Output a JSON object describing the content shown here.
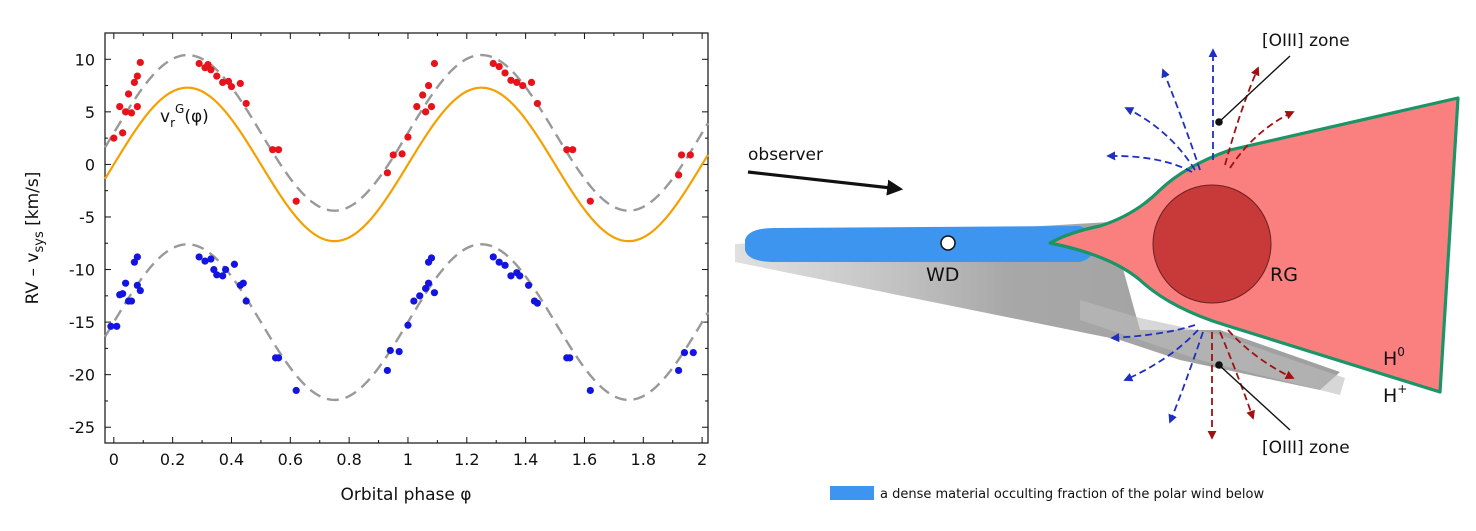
{
  "chart_data": {
    "type": "scatter",
    "xlabel": "Orbital phase φ",
    "ylabel": "RV – v_sys [km/s]",
    "xlim": [
      -0.03,
      2.02
    ],
    "ylim": [
      -26.5,
      12.5
    ],
    "x_ticks": [
      "0",
      "0.2",
      "0.4",
      "0.6",
      "0.8",
      "1",
      "1.2",
      "1.4",
      "1.6",
      "1.8",
      "2"
    ],
    "y_ticks": [
      "10",
      "5",
      "0",
      "-5",
      "-10",
      "-15",
      "-20",
      "-25"
    ],
    "curve_label": "v_r^G(φ)",
    "series": [
      {
        "color": "#e8121b",
        "points": [
          [
            0.0,
            2.5
          ],
          [
            0.02,
            5.5
          ],
          [
            0.03,
            3.0
          ],
          [
            0.04,
            5.0
          ],
          [
            0.05,
            6.7
          ],
          [
            0.06,
            4.9
          ],
          [
            0.07,
            7.8
          ],
          [
            0.08,
            8.4
          ],
          [
            0.08,
            5.5
          ],
          [
            0.09,
            9.7
          ],
          [
            0.29,
            9.6
          ],
          [
            0.31,
            9.2
          ],
          [
            0.32,
            9.5
          ],
          [
            0.33,
            9.0
          ],
          [
            0.35,
            8.4
          ],
          [
            0.37,
            7.8
          ],
          [
            0.39,
            7.9
          ],
          [
            0.4,
            7.4
          ],
          [
            0.43,
            7.7
          ],
          [
            0.45,
            5.8
          ],
          [
            0.54,
            1.4
          ],
          [
            0.56,
            1.4
          ],
          [
            0.62,
            -3.5
          ],
          [
            0.93,
            -0.8
          ],
          [
            0.95,
            0.9
          ],
          [
            0.98,
            1.0
          ],
          [
            1.0,
            2.6
          ],
          [
            1.03,
            5.5
          ],
          [
            1.05,
            6.6
          ],
          [
            1.06,
            5.0
          ],
          [
            1.07,
            7.5
          ],
          [
            1.08,
            5.5
          ],
          [
            1.09,
            9.6
          ],
          [
            1.29,
            9.6
          ],
          [
            1.31,
            9.3
          ],
          [
            1.33,
            8.7
          ],
          [
            1.35,
            8.0
          ],
          [
            1.37,
            7.8
          ],
          [
            1.39,
            7.5
          ],
          [
            1.42,
            7.8
          ],
          [
            1.44,
            5.8
          ],
          [
            1.54,
            1.4
          ],
          [
            1.56,
            1.4
          ],
          [
            1.62,
            -3.5
          ],
          [
            1.92,
            -1.0
          ],
          [
            1.93,
            0.9
          ],
          [
            1.96,
            0.9
          ]
        ]
      },
      {
        "color": "#1414e0",
        "points": [
          [
            -0.01,
            -15.4
          ],
          [
            0.01,
            -15.4
          ],
          [
            0.02,
            -12.4
          ],
          [
            0.03,
            -12.3
          ],
          [
            0.04,
            -11.3
          ],
          [
            0.05,
            -13.0
          ],
          [
            0.06,
            -13.0
          ],
          [
            0.07,
            -9.3
          ],
          [
            0.08,
            -11.5
          ],
          [
            0.08,
            -8.8
          ],
          [
            0.09,
            -12.0
          ],
          [
            0.29,
            -8.8
          ],
          [
            0.31,
            -9.2
          ],
          [
            0.33,
            -9.0
          ],
          [
            0.34,
            -10.0
          ],
          [
            0.35,
            -10.5
          ],
          [
            0.37,
            -10.6
          ],
          [
            0.38,
            -10.0
          ],
          [
            0.41,
            -9.5
          ],
          [
            0.43,
            -11.5
          ],
          [
            0.44,
            -11.3
          ],
          [
            0.45,
            -13.0
          ],
          [
            0.55,
            -18.4
          ],
          [
            0.56,
            -18.4
          ],
          [
            0.62,
            -21.5
          ],
          [
            0.93,
            -19.6
          ],
          [
            0.94,
            -17.7
          ],
          [
            0.97,
            -17.8
          ],
          [
            1.0,
            -15.3
          ],
          [
            1.02,
            -13.0
          ],
          [
            1.04,
            -12.5
          ],
          [
            1.06,
            -11.8
          ],
          [
            1.07,
            -11.3
          ],
          [
            1.07,
            -9.3
          ],
          [
            1.08,
            -8.9
          ],
          [
            1.09,
            -12.2
          ],
          [
            1.29,
            -8.8
          ],
          [
            1.31,
            -9.3
          ],
          [
            1.33,
            -9.6
          ],
          [
            1.35,
            -10.6
          ],
          [
            1.37,
            -10.3
          ],
          [
            1.38,
            -10.6
          ],
          [
            1.41,
            -11.5
          ],
          [
            1.43,
            -13.0
          ],
          [
            1.44,
            -13.2
          ],
          [
            1.54,
            -18.4
          ],
          [
            1.55,
            -18.4
          ],
          [
            1.62,
            -21.5
          ],
          [
            1.92,
            -19.6
          ],
          [
            1.94,
            -17.9
          ],
          [
            1.97,
            -17.9
          ]
        ]
      }
    ],
    "curves": [
      {
        "color": "#999999",
        "style": "dashed",
        "offset": 3.0,
        "amplitude": 7.4
      },
      {
        "color": "#f5a000",
        "style": "solid",
        "offset": 0.0,
        "amplitude": 7.3
      },
      {
        "color": "#999999",
        "style": "dashed",
        "offset": -15.0,
        "amplitude": 7.4
      }
    ]
  },
  "diagram": {
    "observer_label": "observer",
    "wd_label": "WD",
    "rg_label": "RG",
    "oiii_top_label": "[OIII] zone",
    "oiii_bottom_label": "[OIII] zone",
    "h0_label": "H",
    "h0_sup": "0",
    "hplus_label": "H",
    "hplus_sup": "+",
    "legend_text": "a dense material occulting fraction of the polar wind below",
    "colors": {
      "neutral_region": "#fa8080",
      "boundary": "#1b9466",
      "giant": "#c83a3a",
      "disk": "#3d95ef",
      "shadow": "#a5a5a5",
      "arrow_blue": "#1f2fc0",
      "arrow_red": "#a01010"
    }
  }
}
